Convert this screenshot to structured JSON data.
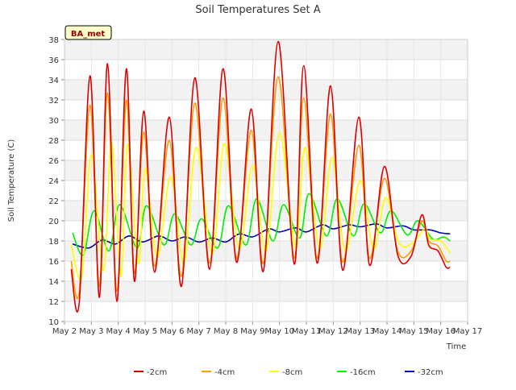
{
  "chart_data": {
    "type": "line",
    "title": "Soil Temperatures Set A",
    "xlabel": "Time",
    "ylabel": "Soil Temperature (C)",
    "ylim": [
      10,
      38
    ],
    "xlim": [
      2,
      17
    ],
    "x_ticks": [
      {
        "value": 2,
        "label": "May 2"
      },
      {
        "value": 3,
        "label": "May 3"
      },
      {
        "value": 4,
        "label": "May 4"
      },
      {
        "value": 5,
        "label": "May 5"
      },
      {
        "value": 6,
        "label": "May 6"
      },
      {
        "value": 7,
        "label": "May 7"
      },
      {
        "value": 8,
        "label": "May 8"
      },
      {
        "value": 9,
        "label": "May 9"
      },
      {
        "value": 10,
        "label": "May 10"
      },
      {
        "value": 11,
        "label": "May 11"
      },
      {
        "value": 12,
        "label": "May 12"
      },
      {
        "value": 13,
        "label": "May 13"
      },
      {
        "value": 14,
        "label": "May 14"
      },
      {
        "value": 15,
        "label": "May 15"
      },
      {
        "value": 16,
        "label": "May 16"
      },
      {
        "value": 17,
        "label": "May 17"
      }
    ],
    "y_ticks": [
      10,
      12,
      14,
      16,
      18,
      20,
      22,
      24,
      26,
      28,
      30,
      32,
      34,
      36,
      38
    ],
    "grid": true,
    "legend_position": "bottom",
    "annotation": "BA_met",
    "series": [
      {
        "name": "-2cm",
        "color": "#dd0000",
        "x": [
          2.25,
          2.55,
          2.95,
          3.3,
          3.6,
          3.95,
          4.3,
          4.6,
          4.95,
          5.35,
          5.9,
          6.35,
          6.85,
          7.4,
          7.9,
          8.4,
          8.95,
          9.4,
          9.95,
          10.55,
          10.9,
          11.4,
          11.9,
          12.35,
          12.95,
          13.35,
          13.9,
          14.4,
          14.9,
          15.3,
          15.55,
          15.9,
          16.2,
          16.35
        ],
        "y": [
          15.2,
          11.9,
          34.4,
          12.4,
          35.6,
          12.0,
          35.1,
          14.0,
          30.9,
          14.9,
          30.3,
          13.5,
          34.2,
          15.2,
          35.1,
          15.9,
          31.1,
          15.0,
          37.8,
          15.7,
          35.4,
          15.8,
          33.4,
          15.1,
          30.3,
          15.6,
          25.4,
          16.6,
          16.5,
          20.6,
          17.6,
          17.0,
          15.4,
          15.4
        ]
      },
      {
        "name": "-4cm",
        "color": "#ff9900",
        "x": [
          2.25,
          2.55,
          2.95,
          3.3,
          3.6,
          3.95,
          4.3,
          4.6,
          4.95,
          5.35,
          5.9,
          6.35,
          6.85,
          7.4,
          7.9,
          8.4,
          8.95,
          9.4,
          9.95,
          10.55,
          10.9,
          11.4,
          11.9,
          12.35,
          12.95,
          13.35,
          13.9,
          14.4,
          14.9,
          15.3,
          15.55,
          15.9,
          16.2,
          16.35
        ],
        "y": [
          16.0,
          13.0,
          31.5,
          13.5,
          32.7,
          13.0,
          32.0,
          14.8,
          28.8,
          15.5,
          28.0,
          14.5,
          31.7,
          15.8,
          32.2,
          16.3,
          29.0,
          15.8,
          34.3,
          16.3,
          32.2,
          16.3,
          30.6,
          15.9,
          27.5,
          16.3,
          24.2,
          17.0,
          17.0,
          20.0,
          18.0,
          17.5,
          16.0,
          16.0
        ]
      },
      {
        "name": "-8cm",
        "color": "#ffff00",
        "x": [
          2.25,
          2.65,
          3.0,
          3.45,
          3.75,
          4.1,
          4.35,
          4.75,
          5.0,
          5.45,
          5.95,
          6.45,
          6.9,
          7.5,
          7.95,
          8.5,
          9.0,
          9.5,
          10.0,
          10.6,
          10.95,
          11.5,
          11.95,
          12.45,
          13.0,
          13.5,
          13.95,
          14.45,
          14.95,
          15.4,
          15.6,
          16.0,
          16.35
        ],
        "y": [
          17.6,
          14.5,
          26.6,
          15.0,
          27.8,
          14.5,
          27.6,
          15.8,
          25.2,
          16.4,
          24.4,
          15.8,
          27.3,
          16.7,
          27.7,
          17.2,
          25.5,
          17.0,
          28.8,
          17.3,
          27.3,
          17.2,
          26.3,
          17.0,
          24.0,
          17.2,
          22.3,
          17.8,
          17.8,
          19.2,
          18.2,
          18.0,
          16.8
        ]
      },
      {
        "name": "-16cm",
        "color": "#00ee00",
        "x": [
          2.3,
          2.7,
          3.1,
          3.65,
          4.05,
          4.7,
          5.05,
          5.7,
          6.1,
          6.7,
          7.1,
          7.7,
          8.1,
          8.75,
          9.15,
          9.75,
          10.15,
          10.75,
          11.1,
          11.75,
          12.15,
          12.75,
          13.15,
          13.75,
          14.15,
          14.75,
          15.15,
          15.7,
          16.1,
          16.35
        ],
        "y": [
          18.8,
          16.6,
          21.0,
          17.0,
          21.6,
          17.3,
          21.5,
          17.6,
          20.7,
          17.6,
          20.2,
          17.3,
          21.5,
          17.6,
          22.2,
          18.0,
          21.6,
          18.3,
          22.7,
          18.5,
          22.2,
          18.5,
          21.7,
          18.8,
          21.0,
          18.6,
          20.0,
          18.2,
          18.4,
          18.0
        ]
      },
      {
        "name": "-32cm",
        "color": "#0000bb",
        "x": [
          2.3,
          2.9,
          3.4,
          3.9,
          4.4,
          4.9,
          5.5,
          6.0,
          6.5,
          7.0,
          7.5,
          8.0,
          8.5,
          9.0,
          9.6,
          10.0,
          10.6,
          11.0,
          11.6,
          12.0,
          12.6,
          13.0,
          13.6,
          14.0,
          14.6,
          15.0,
          15.6,
          16.0,
          16.35
        ],
        "y": [
          17.7,
          17.3,
          18.1,
          17.7,
          18.5,
          17.9,
          18.5,
          18.0,
          18.4,
          17.9,
          18.3,
          17.9,
          18.7,
          18.4,
          19.2,
          18.9,
          19.3,
          18.9,
          19.6,
          19.2,
          19.6,
          19.4,
          19.7,
          19.3,
          19.5,
          19.1,
          19.1,
          18.8,
          18.7
        ]
      }
    ]
  }
}
